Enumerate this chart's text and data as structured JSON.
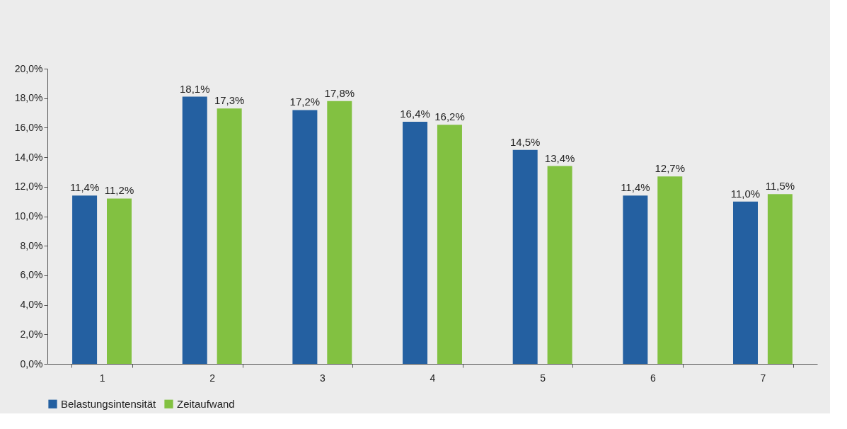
{
  "chart_data": {
    "type": "bar",
    "categories": [
      "1",
      "2",
      "3",
      "4",
      "5",
      "6",
      "7"
    ],
    "series": [
      {
        "name": "Belastungsintensität",
        "color": "#2460a1",
        "values": [
          11.4,
          18.1,
          17.2,
          16.4,
          14.5,
          11.4,
          11.0
        ],
        "value_labels": [
          "11,4%",
          "18,1%",
          "17,2%",
          "16,4%",
          "14,5%",
          "11,4%",
          "11,0%"
        ]
      },
      {
        "name": "Zeitaufwand",
        "color": "#82c141",
        "values": [
          11.2,
          17.3,
          17.8,
          16.2,
          13.4,
          12.7,
          11.5
        ],
        "value_labels": [
          "11,2%",
          "17,3%",
          "17,8%",
          "16,2%",
          "13,4%",
          "12,7%",
          "11,5%"
        ]
      }
    ],
    "ylim": [
      0,
      20
    ],
    "yticks": [
      {
        "value": 0,
        "label": "0,0%"
      },
      {
        "value": 2,
        "label": "2,0%"
      },
      {
        "value": 4,
        "label": "4,0%"
      },
      {
        "value": 6,
        "label": "6,0%"
      },
      {
        "value": 8,
        "label": "8,0%"
      },
      {
        "value": 10,
        "label": "10,0%"
      },
      {
        "value": 12,
        "label": "12,0%"
      },
      {
        "value": 14,
        "label": "14,0%"
      },
      {
        "value": 16,
        "label": "16,0%"
      },
      {
        "value": 18,
        "label": "18,0%"
      },
      {
        "value": 20,
        "label": "20,0%"
      }
    ],
    "grid": false,
    "legend": "bottom"
  }
}
